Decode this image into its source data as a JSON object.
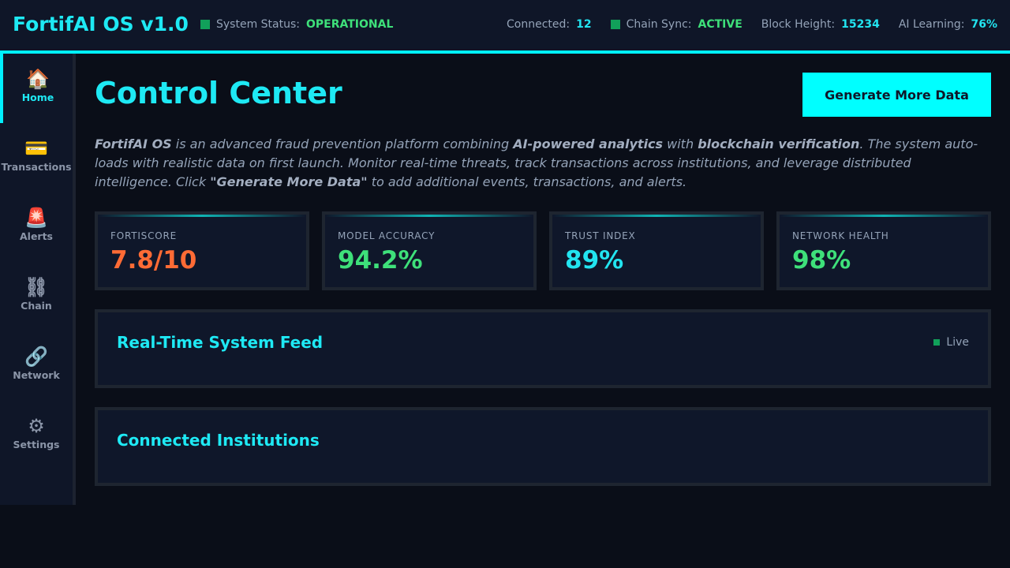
{
  "header": {
    "title": "FortifAI OS v1.0",
    "left_status": [
      {
        "label": "System Status:",
        "value": "OPERATIONAL",
        "color": "#3ee07a",
        "indicator": true
      }
    ],
    "right_status": [
      {
        "label": "Connected:",
        "value": 12,
        "color": "#22e4f0",
        "indicator": false
      },
      {
        "label": "Chain Sync:",
        "value": "ACTIVE",
        "color": "#3ee07a",
        "indicator": true
      },
      {
        "label": "Block Height:",
        "value": 15234,
        "color": "#22e4f0",
        "indicator": false
      },
      {
        "label": "AI Learning:",
        "value": "76%",
        "color": "#22e4f0",
        "indicator": false
      }
    ]
  },
  "sidebar": {
    "items": [
      {
        "icon": "🏠",
        "label": "Home",
        "active": true
      },
      {
        "icon": "💳",
        "label": "Transactions",
        "active": false
      },
      {
        "icon": "🚨",
        "label": "Alerts",
        "active": false
      },
      {
        "icon": "⛓",
        "label": "Chain",
        "active": false
      },
      {
        "icon": "🔗",
        "label": "Network",
        "active": false
      },
      {
        "icon": "⚙",
        "label": "Settings",
        "active": false
      }
    ]
  },
  "main": {
    "title": "Control Center",
    "button": "Generate More Data",
    "description": [
      {
        "text": "FortifAI OS",
        "bold": true
      },
      {
        "text": " is an advanced fraud prevention platform combining ",
        "bold": false
      },
      {
        "text": "AI-powered analytics",
        "bold": true
      },
      {
        "text": " with ",
        "bold": false
      },
      {
        "text": "blockchain verification",
        "bold": true
      },
      {
        "text": ". The system auto-loads with realistic data on first launch. Monitor real-time threats, track transactions across institutions, and leverage distributed intelligence. Click ",
        "bold": false
      },
      {
        "text": "\"Generate More Data\"",
        "bold": true
      },
      {
        "text": " to add additional events, transactions, and alerts.",
        "bold": false
      }
    ],
    "metrics": [
      {
        "label": "FORTISCORE",
        "value": "7.8/10",
        "color": "#ff6b35"
      },
      {
        "label": "MODEL ACCURACY",
        "value": "94.2%",
        "color": "#3ee07a"
      },
      {
        "label": "TRUST INDEX",
        "value": "89%",
        "color": "#22e4f0"
      },
      {
        "label": "NETWORK HEALTH",
        "value": "98%",
        "color": "#3ee07a"
      }
    ],
    "panels": [
      {
        "title": "Real-Time System Feed",
        "badge": "Live"
      },
      {
        "title": "Connected Institutions",
        "badge": null
      }
    ]
  }
}
